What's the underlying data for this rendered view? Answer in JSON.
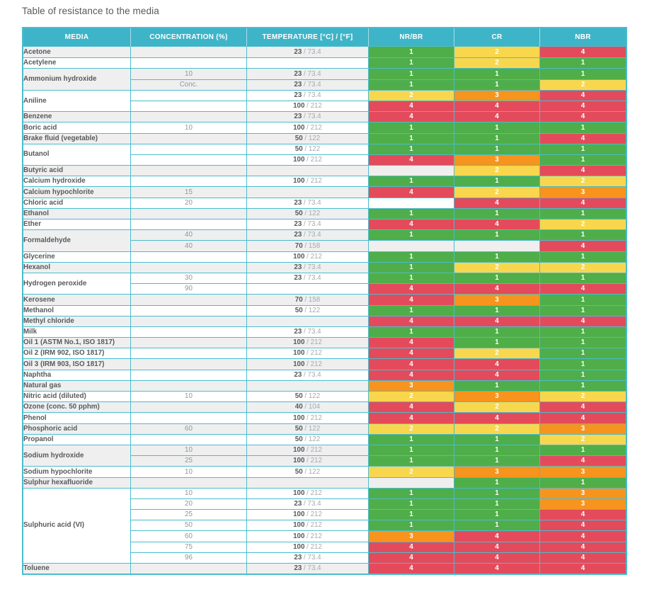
{
  "page_title": "Table of resistance to the media",
  "colors": {
    "header_bg": "#3eb4c8",
    "border": "#4bbccd",
    "stripe_gray": "#efeff0",
    "media_text": "#58595b",
    "secondary_text": "#939598",
    "temp_f_text": "#a7a9ac",
    "rating_text": "#ffffff"
  },
  "rating_colors": {
    "1": "#4fae49",
    "2": "#f8d74e",
    "3": "#f6941e",
    "4": "#e34b5c"
  },
  "table": {
    "headers": [
      "MEDIA",
      "CONCENTRATION (%)",
      "TEMPERATURE [°C] / [°F]",
      "NR/BR",
      "CR",
      "NBR"
    ],
    "temp_separator": " / ",
    "groups": [
      {
        "media": "Acetone",
        "shade": "gray",
        "rows": [
          {
            "conc": "",
            "temp_c": "23",
            "temp_f": "73.4",
            "ratings": [
              1,
              2,
              4
            ]
          }
        ]
      },
      {
        "media": "Acetylene",
        "shade": "white",
        "rows": [
          {
            "conc": "",
            "temp_c": "",
            "temp_f": "",
            "ratings": [
              1,
              2,
              1
            ]
          }
        ]
      },
      {
        "media": "Ammonium hydroxide",
        "shade": "gray",
        "rows": [
          {
            "conc": "10",
            "temp_c": "23",
            "temp_f": "73.4",
            "ratings": [
              1,
              1,
              1
            ]
          },
          {
            "conc": "Conc.",
            "temp_c": "23",
            "temp_f": "73.4",
            "ratings": [
              1,
              1,
              2
            ]
          }
        ]
      },
      {
        "media": "Aniline",
        "shade": "white",
        "rows": [
          {
            "conc": "",
            "temp_c": "23",
            "temp_f": "73.4",
            "ratings": [
              2,
              3,
              4
            ]
          },
          {
            "conc": "",
            "temp_c": "100",
            "temp_f": "212",
            "ratings": [
              4,
              4,
              4
            ]
          }
        ]
      },
      {
        "media": "Benzene",
        "shade": "gray",
        "rows": [
          {
            "conc": "",
            "temp_c": "23",
            "temp_f": "73.4",
            "ratings": [
              4,
              4,
              4
            ]
          }
        ]
      },
      {
        "media": "Boric acid",
        "shade": "white",
        "rows": [
          {
            "conc": "10",
            "temp_c": "100",
            "temp_f": "212",
            "ratings": [
              1,
              1,
              1
            ]
          }
        ]
      },
      {
        "media": "Brake fluid (vegetable)",
        "shade": "gray",
        "rows": [
          {
            "conc": "",
            "temp_c": "50",
            "temp_f": "122",
            "ratings": [
              1,
              1,
              4
            ]
          }
        ]
      },
      {
        "media": "Butanol",
        "shade": "white",
        "rows": [
          {
            "conc": "",
            "temp_c": "50",
            "temp_f": "122",
            "ratings": [
              1,
              1,
              1
            ]
          },
          {
            "conc": "",
            "temp_c": "100",
            "temp_f": "212",
            "ratings": [
              4,
              3,
              1
            ]
          }
        ]
      },
      {
        "media": "Butyric acid",
        "shade": "gray",
        "rows": [
          {
            "conc": "",
            "temp_c": "",
            "temp_f": "",
            "ratings": [
              null,
              2,
              4
            ]
          }
        ]
      },
      {
        "media": "Calcium hydroxide",
        "shade": "white",
        "rows": [
          {
            "conc": "",
            "temp_c": "100",
            "temp_f": "212",
            "ratings": [
              1,
              1,
              2
            ]
          }
        ]
      },
      {
        "media": "Calcium hypochlorite",
        "shade": "gray",
        "rows": [
          {
            "conc": "15",
            "temp_c": "",
            "temp_f": "",
            "ratings": [
              4,
              2,
              3
            ]
          }
        ]
      },
      {
        "media": "Chloric acid",
        "shade": "white",
        "rows": [
          {
            "conc": "20",
            "temp_c": "23",
            "temp_f": "73.4",
            "ratings": [
              null,
              4,
              4
            ]
          }
        ]
      },
      {
        "media": "Ethanol",
        "shade": "gray",
        "rows": [
          {
            "conc": "",
            "temp_c": "50",
            "temp_f": "122",
            "ratings": [
              1,
              1,
              1
            ]
          }
        ]
      },
      {
        "media": "Ether",
        "shade": "white",
        "rows": [
          {
            "conc": "",
            "temp_c": "23",
            "temp_f": "73.4",
            "ratings": [
              4,
              4,
              2
            ]
          }
        ]
      },
      {
        "media": "Formaldehyde",
        "shade": "gray",
        "rows": [
          {
            "conc": "40",
            "temp_c": "23",
            "temp_f": "73.4",
            "ratings": [
              1,
              1,
              1
            ]
          },
          {
            "conc": "40",
            "temp_c": "70",
            "temp_f": "158",
            "ratings": [
              null,
              null,
              4
            ]
          }
        ]
      },
      {
        "media": "Glycerine",
        "shade": "white",
        "rows": [
          {
            "conc": "",
            "temp_c": "100",
            "temp_f": "212",
            "ratings": [
              1,
              1,
              1
            ]
          }
        ]
      },
      {
        "media": "Hexanol",
        "shade": "gray",
        "rows": [
          {
            "conc": "",
            "temp_c": "23",
            "temp_f": "73.4",
            "ratings": [
              1,
              2,
              2
            ]
          }
        ]
      },
      {
        "media": "Hydrogen peroxide",
        "shade": "white",
        "rows": [
          {
            "conc": "30",
            "temp_c": "23",
            "temp_f": "73.4",
            "ratings": [
              1,
              1,
              1
            ]
          },
          {
            "conc": "90",
            "temp_c": "",
            "temp_f": "",
            "ratings": [
              4,
              4,
              4
            ]
          }
        ]
      },
      {
        "media": "Kerosene",
        "shade": "gray",
        "rows": [
          {
            "conc": "",
            "temp_c": "70",
            "temp_f": "158",
            "ratings": [
              4,
              3,
              1
            ]
          }
        ]
      },
      {
        "media": "Methanol",
        "shade": "white",
        "rows": [
          {
            "conc": "",
            "temp_c": "50",
            "temp_f": "122",
            "ratings": [
              1,
              1,
              1
            ]
          }
        ]
      },
      {
        "media": "Methyl chloride",
        "shade": "gray",
        "rows": [
          {
            "conc": "",
            "temp_c": "",
            "temp_f": "",
            "ratings": [
              4,
              4,
              4
            ]
          }
        ]
      },
      {
        "media": "Milk",
        "shade": "white",
        "rows": [
          {
            "conc": "",
            "temp_c": "23",
            "temp_f": "73.4",
            "ratings": [
              1,
              1,
              1
            ]
          }
        ]
      },
      {
        "media": "Oil 1 (ASTM No.1, ISO 1817)",
        "shade": "gray",
        "rows": [
          {
            "conc": "",
            "temp_c": "100",
            "temp_f": "212",
            "ratings": [
              4,
              1,
              1
            ]
          }
        ]
      },
      {
        "media": "Oil 2 (IRM 902, ISO 1817)",
        "shade": "white",
        "rows": [
          {
            "conc": "",
            "temp_c": "100",
            "temp_f": "212",
            "ratings": [
              4,
              2,
              1
            ]
          }
        ]
      },
      {
        "media": "Oil 3 (IRM 903, ISO 1817)",
        "shade": "gray",
        "rows": [
          {
            "conc": "",
            "temp_c": "100",
            "temp_f": "212",
            "ratings": [
              4,
              4,
              1
            ]
          }
        ]
      },
      {
        "media": "Naphtha",
        "shade": "white",
        "rows": [
          {
            "conc": "",
            "temp_c": "23",
            "temp_f": "73.4",
            "ratings": [
              4,
              4,
              1
            ]
          }
        ]
      },
      {
        "media": "Natural gas",
        "shade": "gray",
        "rows": [
          {
            "conc": "",
            "temp_c": "",
            "temp_f": "",
            "ratings": [
              3,
              1,
              1
            ]
          }
        ]
      },
      {
        "media": "Nitric acid (diluted)",
        "shade": "white",
        "rows": [
          {
            "conc": "10",
            "temp_c": "50",
            "temp_f": "122",
            "ratings": [
              2,
              3,
              2
            ]
          }
        ]
      },
      {
        "media": "Ozone (conc. 50 pphm)",
        "shade": "gray",
        "rows": [
          {
            "conc": "",
            "temp_c": "40",
            "temp_f": "104",
            "ratings": [
              4,
              2,
              4
            ]
          }
        ]
      },
      {
        "media": "Phenol",
        "shade": "white",
        "rows": [
          {
            "conc": "",
            "temp_c": "100",
            "temp_f": "212",
            "ratings": [
              4,
              4,
              4
            ]
          }
        ]
      },
      {
        "media": "Phosphoric acid",
        "shade": "gray",
        "rows": [
          {
            "conc": "60",
            "temp_c": "50",
            "temp_f": "122",
            "ratings": [
              2,
              2,
              3
            ]
          }
        ]
      },
      {
        "media": "Propanol",
        "shade": "white",
        "rows": [
          {
            "conc": "",
            "temp_c": "50",
            "temp_f": "122",
            "ratings": [
              1,
              1,
              2
            ]
          }
        ]
      },
      {
        "media": "Sodium hydroxide",
        "shade": "gray",
        "rows": [
          {
            "conc": "10",
            "temp_c": "100",
            "temp_f": "212",
            "ratings": [
              1,
              1,
              1
            ]
          },
          {
            "conc": "25",
            "temp_c": "100",
            "temp_f": "212",
            "ratings": [
              1,
              1,
              4
            ]
          }
        ]
      },
      {
        "media": "Sodium hypochlorite",
        "shade": "white",
        "rows": [
          {
            "conc": "10",
            "temp_c": "50",
            "temp_f": "122",
            "ratings": [
              2,
              3,
              3
            ]
          }
        ]
      },
      {
        "media": "Sulphur hexafluoride",
        "shade": "gray",
        "rows": [
          {
            "conc": "",
            "temp_c": "",
            "temp_f": "",
            "ratings": [
              null,
              1,
              1
            ]
          }
        ]
      },
      {
        "media": "Sulphuric acid (VI)",
        "shade": "white",
        "rows": [
          {
            "conc": "10",
            "temp_c": "100",
            "temp_f": "212",
            "ratings": [
              1,
              1,
              3
            ]
          },
          {
            "conc": "20",
            "temp_c": "23",
            "temp_f": "73.4",
            "ratings": [
              1,
              1,
              3
            ]
          },
          {
            "conc": "25",
            "temp_c": "100",
            "temp_f": "212",
            "ratings": [
              1,
              1,
              4
            ]
          },
          {
            "conc": "50",
            "temp_c": "100",
            "temp_f": "212",
            "ratings": [
              1,
              1,
              4
            ]
          },
          {
            "conc": "60",
            "temp_c": "100",
            "temp_f": "212",
            "ratings": [
              3,
              4,
              4
            ]
          },
          {
            "conc": "75",
            "temp_c": "100",
            "temp_f": "212",
            "ratings": [
              4,
              4,
              4
            ]
          },
          {
            "conc": "96",
            "temp_c": "23",
            "temp_f": "73.4",
            "ratings": [
              4,
              4,
              4
            ]
          }
        ]
      },
      {
        "media": "Toluene",
        "shade": "gray",
        "rows": [
          {
            "conc": "",
            "temp_c": "23",
            "temp_f": "73.4",
            "ratings": [
              4,
              4,
              4
            ]
          }
        ]
      }
    ]
  }
}
